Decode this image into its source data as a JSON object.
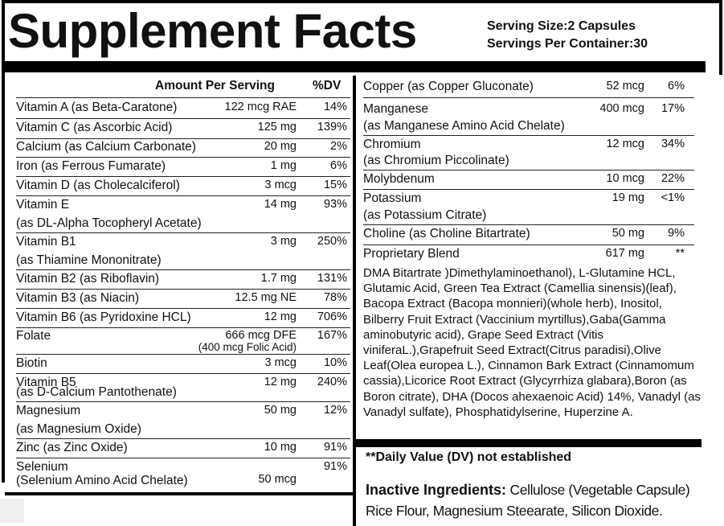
{
  "title": "Supplement Facts",
  "serving_size": "Serving Size:2 Capsules",
  "servings_per_container": "Servings Per Container:30",
  "header": {
    "amount": "Amount Per Serving",
    "dv": "%DV"
  },
  "left_rows": [
    {
      "name": "Vitamin A (as Beta-Caratone)",
      "amount": "122 mcg RAE",
      "dv": "14%"
    },
    {
      "name": "Vitamin C (as Ascorbic Acid)",
      "amount": "125 mg",
      "dv": "139%"
    },
    {
      "name": "Calcium (as Calcium Carbonate)",
      "amount": "20 mg",
      "dv": "2%"
    },
    {
      "name": "Iron (as Ferrous Fumarate)",
      "amount": "1 mg",
      "dv": "6%"
    },
    {
      "name": "Vitamin D (as Cholecalciferol)",
      "amount": "3 mcg",
      "dv": "15%"
    },
    {
      "name": "Vitamin E",
      "name2": "(as DL-Alpha Tocopheryl Acetate)",
      "amount": "14 mg",
      "dv": "93%"
    },
    {
      "name": "Vitamin B1",
      "name2": "(as Thiamine Mononitrate)",
      "amount": "3 mg",
      "dv": "250%"
    },
    {
      "name": "Vitamin B2 (as Riboflavin)",
      "amount": "1.7 mg",
      "dv": "131%"
    },
    {
      "name": "Vitamin B3 (as Niacin)",
      "amount": "12.5 mg NE",
      "dv": "78%"
    },
    {
      "name": "Vitamin B6 (as Pyridoxine HCL)",
      "amount": "12 mg",
      "dv": "706%"
    },
    {
      "name": "Folate",
      "amount": "666 mcg DFE",
      "amount2": "(400 mcg Folic Acid)",
      "dv": "167%"
    },
    {
      "name": "Biotin",
      "amount": "3 mcg",
      "dv": "10%"
    },
    {
      "name": "Vitamin B5",
      "name2": "(as D-Calcium Pantothenate)",
      "amount": "12 mg",
      "dv": "240%"
    },
    {
      "name": "Magnesium",
      "name2": "(as Magnesium Oxide)",
      "amount": "50 mg",
      "dv": "12%"
    },
    {
      "name": "Zinc (as Zinc Oxide)",
      "amount": "10 mg",
      "dv": "91%"
    },
    {
      "name": "Selenium",
      "name2": "(Selenium Amino Acid Chelate)",
      "amount": "50 mcg",
      "dv": "91%"
    }
  ],
  "right_rows": [
    {
      "name": "Copper (as Copper Gluconate)",
      "amount": "52 mcg",
      "dv": "6%"
    },
    {
      "name": "Manganese",
      "name2": "(as Manganese Amino Acid Chelate)",
      "amount": "400 mcg",
      "dv": "17%"
    },
    {
      "name": "Chromium",
      "name2": "(as Chromium Piccolinate)",
      "amount": "12 mcg",
      "dv": "34%"
    },
    {
      "name": "Molybdenum",
      "amount": "10 mcg",
      "dv": "22%"
    },
    {
      "name": "Potassium",
      "name2": "(as Potassium Citrate)",
      "amount": "19 mg",
      "dv": "<1%"
    },
    {
      "name": "Choline (as Choline Bitartrate)",
      "amount": "50 mg",
      "dv": "9%"
    },
    {
      "name": "Proprietary Blend",
      "amount": "617 mg",
      "dv": "**"
    }
  ],
  "blend_text": "DMA Bitartrate )Dimethylaminoethanol), L-Glutamine HCL, Glutamic Acid, Green Tea Extract (Camellia sinensis)(leaf), Bacopa Extract (Bacopa monnieri)(whole herb), Inositol, Bilberry Fruit Extract (Vaccinium myrtillus),Gaba(Gamma aminobutyric acid), Grape Seed Extract (Vitis viniferaL.),Grapefruit Seed Extract(Citrus paradisi),Olive Leaf(Olea europea L.), Cinnamon Bark Extract (Cinnamomum cassia),Licorice Root Extract (Glycyrrhiza glabara),Boron (as Boron citrate), DHA (Docos ahexaenoic Acid) 14%, Vanadyl (as Vanadyl sulfate), Phosphatidylserine, Huperzine A.",
  "dv_note": "**Daily Value (DV) not established",
  "inactive_label": "Inactive Ingredients:",
  "inactive_text": "Cellulose (Vegetable Capsule) Rice Flour, Magnesium Steearate, Silicon Dioxide."
}
